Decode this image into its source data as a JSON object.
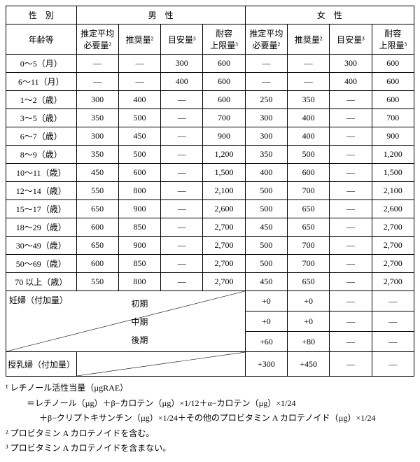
{
  "header": {
    "gender_col": "性　別",
    "age_col": "年齢等",
    "male": "男　性",
    "female": "女　性",
    "cols": [
      "推定平均\n必要量²",
      "推奨量²",
      "目安量³",
      "耐容\n上限量³"
    ]
  },
  "rows": [
    {
      "age": "0～5（月）",
      "m": [
        "―",
        "―",
        "300",
        "600"
      ],
      "f": [
        "―",
        "―",
        "300",
        "600"
      ]
    },
    {
      "age": "6～11（月）",
      "m": [
        "―",
        "―",
        "400",
        "600"
      ],
      "f": [
        "―",
        "―",
        "400",
        "600"
      ]
    },
    {
      "age": "1～2（歳）",
      "m": [
        "300",
        "400",
        "―",
        "600"
      ],
      "f": [
        "250",
        "350",
        "―",
        "600"
      ]
    },
    {
      "age": "3～5（歳）",
      "m": [
        "350",
        "500",
        "―",
        "700"
      ],
      "f": [
        "300",
        "400",
        "―",
        "700"
      ]
    },
    {
      "age": "6～7（歳）",
      "m": [
        "300",
        "450",
        "―",
        "900"
      ],
      "f": [
        "300",
        "400",
        "―",
        "900"
      ]
    },
    {
      "age": "8～9（歳）",
      "m": [
        "350",
        "500",
        "―",
        "1,200"
      ],
      "f": [
        "350",
        "500",
        "―",
        "1,200"
      ]
    },
    {
      "age": "10～11（歳）",
      "m": [
        "450",
        "600",
        "―",
        "1,500"
      ],
      "f": [
        "400",
        "600",
        "―",
        "1,500"
      ]
    },
    {
      "age": "12～14（歳）",
      "m": [
        "550",
        "800",
        "―",
        "2,100"
      ],
      "f": [
        "500",
        "700",
        "―",
        "2,100"
      ]
    },
    {
      "age": "15～17（歳）",
      "m": [
        "650",
        "900",
        "―",
        "2,600"
      ],
      "f": [
        "500",
        "650",
        "―",
        "2,600"
      ]
    },
    {
      "age": "18～29（歳）",
      "m": [
        "600",
        "850",
        "―",
        "2,700"
      ],
      "f": [
        "450",
        "650",
        "―",
        "2,700"
      ]
    },
    {
      "age": "30～49（歳）",
      "m": [
        "650",
        "900",
        "―",
        "2,700"
      ],
      "f": [
        "500",
        "700",
        "―",
        "2,700"
      ]
    },
    {
      "age": "50～69（歳）",
      "m": [
        "600",
        "850",
        "―",
        "2,700"
      ],
      "f": [
        "500",
        "700",
        "―",
        "2,700"
      ]
    },
    {
      "age": "70 以上（歳）",
      "m": [
        "550",
        "800",
        "―",
        "2,700"
      ],
      "f": [
        "450",
        "650",
        "―",
        "2,700"
      ]
    }
  ],
  "pregnancy": {
    "label": "妊婦（付加量）",
    "stages": [
      {
        "label": "初期",
        "f": [
          "+0",
          "+0",
          "―",
          "―"
        ]
      },
      {
        "label": "中期",
        "f": [
          "+0",
          "+0",
          "―",
          "―"
        ]
      },
      {
        "label": "後期",
        "f": [
          "+60",
          "+80",
          "―",
          "―"
        ]
      }
    ]
  },
  "lactation": {
    "label": "授乳婦（付加量）",
    "f": [
      "+300",
      "+450",
      "―",
      "―"
    ]
  },
  "notes": [
    "¹ レチノール活性当量（µgRAE）",
    "＝レチノール（µg）＋β−カロテン（µg）×1/12＋α−カロテン（µg）×1/24",
    "＋β−クリプトキサンチン（µg）×1/24＋その他のプロビタミン A カロテノイド（µg）×1/24",
    "² プロビタミン A カロテノイドを含む。",
    "³ プロビタミン A カロテノイドを含まない。"
  ]
}
